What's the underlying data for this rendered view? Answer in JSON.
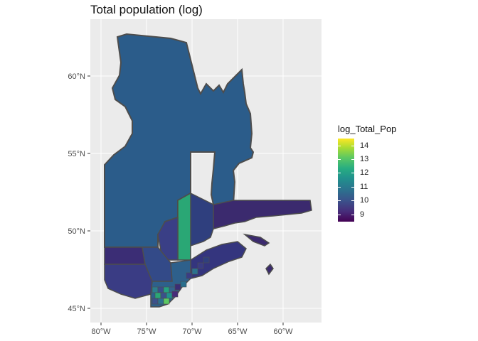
{
  "title": "Total population (log)",
  "axes": {
    "x_ticks": [
      "80°W",
      "75°W",
      "70°W",
      "65°W",
      "60°W"
    ],
    "y_ticks": [
      "45°N",
      "50°N",
      "55°N",
      "60°N"
    ]
  },
  "legend": {
    "title": "log_Total_Pop",
    "ticks": [
      "14",
      "13",
      "12",
      "11",
      "10",
      "9"
    ],
    "colors": [
      "#440154",
      "#3b518b",
      "#21908d",
      "#5cc863",
      "#fde725"
    ]
  },
  "colors": {
    "panel_bg": "#ebebeb",
    "grid": "#ffffff",
    "border": "#4d4d4d",
    "north_region": "#2b5c8a",
    "east_region": "#3b2a6e",
    "highlight_region": "#2aa775"
  }
}
